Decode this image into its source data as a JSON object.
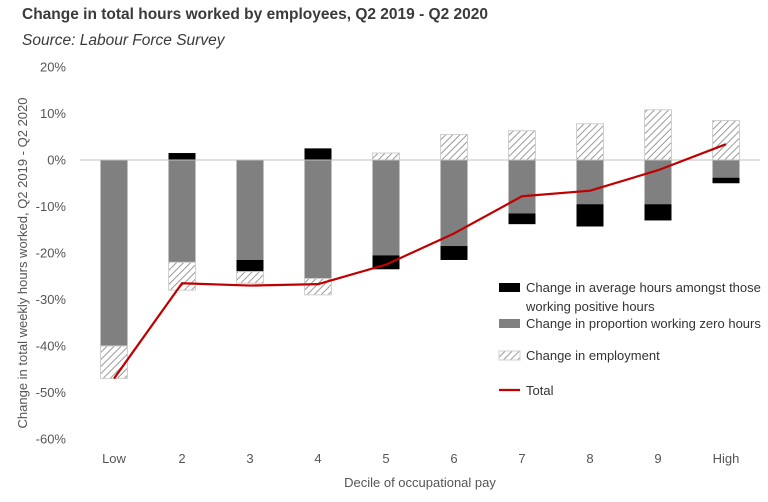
{
  "title": "Change in total hours worked by employees, Q2 2019 - Q2 2020",
  "subtitle": "Source: Labour Force Survey",
  "chart_data": {
    "type": "bar",
    "stacked": true,
    "categories": [
      "Low",
      "2",
      "3",
      "4",
      "5",
      "6",
      "7",
      "8",
      "9",
      "High"
    ],
    "xlabel": "Decile of occupational pay",
    "ylabel": "Change in total weekly hours worked, Q2 2019 - Q2 2020",
    "ylim": [
      -60,
      20
    ],
    "yticks": [
      20,
      10,
      0,
      -10,
      -20,
      -30,
      -40,
      -50,
      -60
    ],
    "ytick_labels": [
      "20%",
      "10%",
      "0%",
      "-10%",
      "-20%",
      "-30%",
      "-40%",
      "-50%",
      "-60%"
    ],
    "grid": false,
    "legend_position": "right",
    "series": [
      {
        "name": "Change in average hours amongst those working positive hours",
        "kind": "bar",
        "color": "#000000",
        "values": [
          0,
          1.5,
          -2.5,
          2.5,
          -3,
          -3,
          -2.3,
          -4.8,
          -3.5,
          -1.2
        ]
      },
      {
        "name": "Change in proportion working zero hours",
        "kind": "bar",
        "color": "#808080",
        "values": [
          -40,
          -22,
          -21.5,
          -25.5,
          -20.5,
          -18.5,
          -11.5,
          -9.5,
          -9.5,
          -3.8
        ]
      },
      {
        "name": "Change in employment",
        "kind": "bar",
        "pattern": "hatched",
        "color": "#b8b8b8",
        "values": [
          -7,
          -6,
          -2.5,
          -3.5,
          1.5,
          5.5,
          6.3,
          7.8,
          10.8,
          8.5
        ]
      },
      {
        "name": "Total",
        "kind": "line",
        "color": "#c00000",
        "values": [
          -47,
          -26.5,
          -27,
          -26.7,
          -22.5,
          -15.8,
          -7.8,
          -6.6,
          -2.2,
          3.4
        ]
      }
    ]
  }
}
